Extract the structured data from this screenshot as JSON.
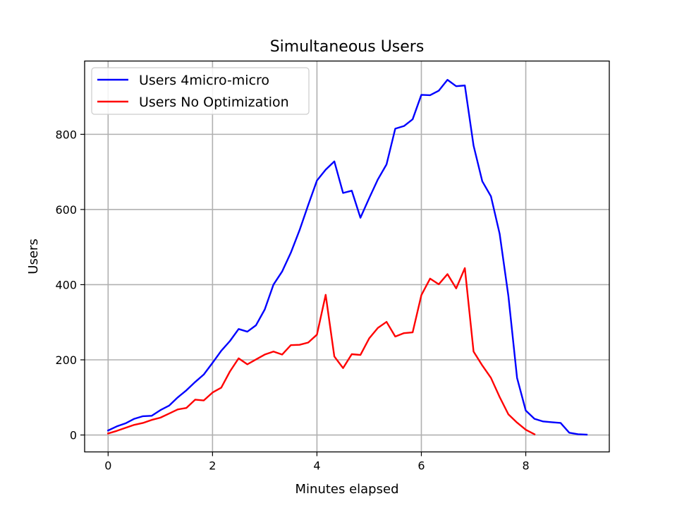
{
  "chart_data": {
    "type": "line",
    "title": "Simultaneous Users",
    "xlabel": "Minutes elapsed",
    "ylabel": "Users",
    "xlim": [
      -0.45,
      9.6
    ],
    "ylim": [
      -45,
      995
    ],
    "xticks": [
      0,
      2,
      4,
      6,
      8
    ],
    "yticks": [
      0,
      200,
      400,
      600,
      800
    ],
    "grid": true,
    "legend_position": "upper-left",
    "series": [
      {
        "name": "Users 4micro-micro",
        "color": "#0000ff",
        "x": [
          0,
          0.167,
          0.333,
          0.5,
          0.667,
          0.833,
          1.0,
          1.167,
          1.333,
          1.5,
          1.667,
          1.833,
          2.0,
          2.167,
          2.333,
          2.5,
          2.667,
          2.833,
          3.0,
          3.167,
          3.333,
          3.5,
          3.667,
          3.833,
          4.0,
          4.167,
          4.333,
          4.5,
          4.667,
          4.833,
          5.0,
          5.167,
          5.333,
          5.5,
          5.667,
          5.833,
          6.0,
          6.167,
          6.333,
          6.5,
          6.667,
          6.833,
          7.0,
          7.167,
          7.333,
          7.5,
          7.667,
          7.833,
          8.0,
          8.167,
          8.333,
          8.5,
          8.667,
          8.833,
          9.0,
          9.167
        ],
        "y": [
          12,
          23,
          31,
          43,
          50,
          51,
          66,
          78,
          100,
          119,
          141,
          161,
          192,
          224,
          250,
          282,
          275,
          292,
          334,
          400,
          435,
          485,
          545,
          612,
          677,
          706,
          728,
          644,
          650,
          578,
          630,
          680,
          720,
          815,
          822,
          840,
          905,
          904,
          916,
          945,
          928,
          930,
          770,
          675,
          635,
          535,
          370,
          152,
          65,
          43,
          36,
          34,
          32,
          6,
          2,
          1
        ]
      },
      {
        "name": "Users No Optimization",
        "color": "#ff0000",
        "x": [
          0,
          0.167,
          0.333,
          0.5,
          0.667,
          0.833,
          1.0,
          1.167,
          1.333,
          1.5,
          1.667,
          1.833,
          2.0,
          2.167,
          2.333,
          2.5,
          2.667,
          2.833,
          3.0,
          3.167,
          3.333,
          3.5,
          3.667,
          3.833,
          4.0,
          4.167,
          4.333,
          4.5,
          4.667,
          4.833,
          5.0,
          5.167,
          5.333,
          5.5,
          5.667,
          5.833,
          6.0,
          6.167,
          6.333,
          6.5,
          6.667,
          6.833,
          7.0,
          7.167,
          7.333,
          7.5,
          7.667,
          7.833,
          8.0,
          8.167
        ],
        "y": [
          4,
          11,
          19,
          27,
          32,
          40,
          46,
          57,
          68,
          72,
          94,
          92,
          113,
          126,
          169,
          204,
          188,
          201,
          214,
          222,
          214,
          239,
          240,
          246,
          267,
          373,
          209,
          178,
          215,
          213,
          257,
          285,
          301,
          262,
          271,
          273,
          372,
          416,
          401,
          428,
          390,
          444,
          222,
          185,
          152,
          101,
          55,
          33,
          14,
          2
        ]
      }
    ]
  }
}
